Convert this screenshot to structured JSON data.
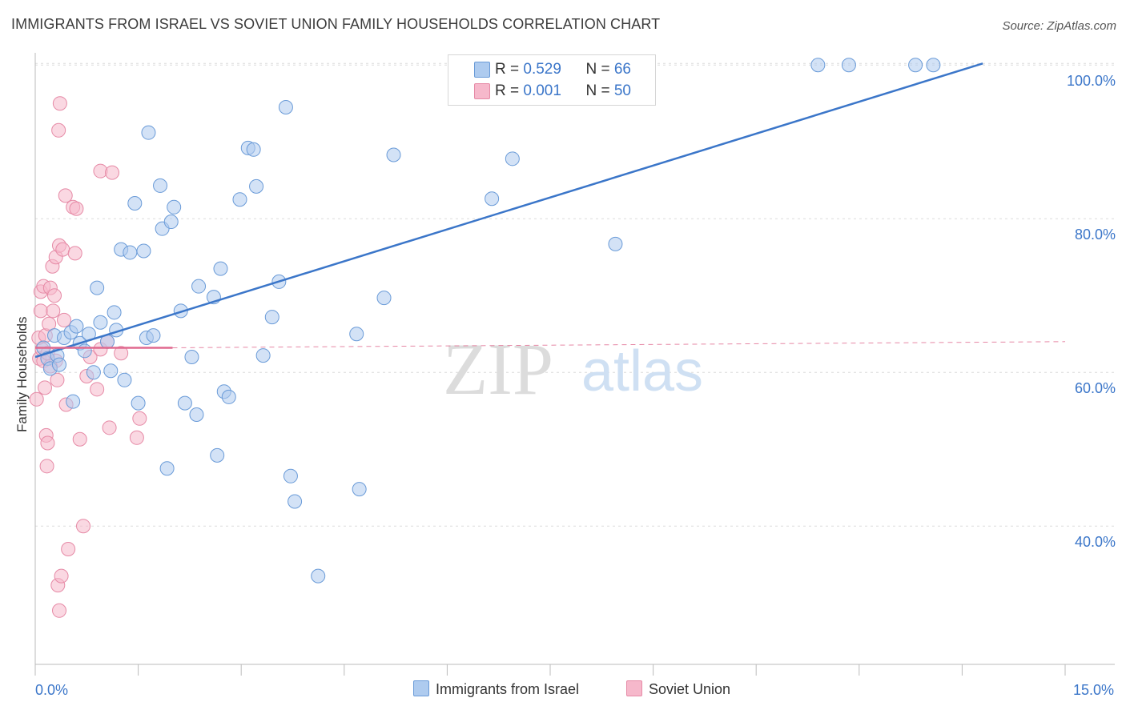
{
  "title": "IMMIGRANTS FROM ISRAEL VS SOVIET UNION FAMILY HOUSEHOLDS CORRELATION CHART",
  "source": "Source: ZipAtlas.com",
  "watermark": {
    "zip": "ZIP",
    "atlas": "atlas"
  },
  "legend": {
    "rows": [
      {
        "r_label": "R = ",
        "r_value": "0.529",
        "n_label": "N = ",
        "n_value": "66",
        "color": "#aecbef"
      },
      {
        "r_label": "R = ",
        "r_value": "0.001",
        "n_label": "N = ",
        "n_value": "50",
        "color": "#f6b8cb"
      }
    ]
  },
  "bottom_legend": {
    "israel": "Immigrants from Israel",
    "soviet": "Soviet Union"
  },
  "axes": {
    "ylabel": "Family Households",
    "x_min_label": "0.0%",
    "x_max_label": "15.0%"
  },
  "chart_data": {
    "type": "scatter",
    "title": "IMMIGRANTS FROM ISRAEL VS SOVIET UNION FAMILY HOUSEHOLDS CORRELATION CHART",
    "xlabel": "",
    "ylabel": "Family Households",
    "xlim": [
      0,
      15
    ],
    "ylim": [
      22,
      102
    ],
    "y_ticks": [
      {
        "value": 40,
        "label": "40.0%"
      },
      {
        "value": 60,
        "label": "60.0%"
      },
      {
        "value": 80,
        "label": "80.0%"
      },
      {
        "value": 100,
        "label": "100.0%"
      }
    ],
    "grid": true,
    "series": [
      {
        "name": "Immigrants from Israel",
        "color": "#aecbef",
        "stroke": "#6a9bd8",
        "trend": {
          "x": [
            0.0,
            13.8
          ],
          "y": [
            62.0,
            100.2
          ],
          "color": "#3b76c9",
          "dashed": false
        },
        "points": [
          [
            0.12,
            63.2
          ],
          [
            0.18,
            61.8
          ],
          [
            0.22,
            60.5
          ],
          [
            0.28,
            64.8
          ],
          [
            0.32,
            62.2
          ],
          [
            0.35,
            61.0
          ],
          [
            0.42,
            64.5
          ],
          [
            0.52,
            65.2
          ],
          [
            0.55,
            56.2
          ],
          [
            0.6,
            66.0
          ],
          [
            0.65,
            63.8
          ],
          [
            0.72,
            62.8
          ],
          [
            0.78,
            65.0
          ],
          [
            0.85,
            60.0
          ],
          [
            0.9,
            71.0
          ],
          [
            0.95,
            66.5
          ],
          [
            1.05,
            64.0
          ],
          [
            1.1,
            60.2
          ],
          [
            1.15,
            67.8
          ],
          [
            1.18,
            65.5
          ],
          [
            1.25,
            76.0
          ],
          [
            1.3,
            59.0
          ],
          [
            1.38,
            75.6
          ],
          [
            1.45,
            82.0
          ],
          [
            1.5,
            56.0
          ],
          [
            1.58,
            75.8
          ],
          [
            1.62,
            64.5
          ],
          [
            1.65,
            91.2
          ],
          [
            1.72,
            64.8
          ],
          [
            1.82,
            84.3
          ],
          [
            1.85,
            78.7
          ],
          [
            1.92,
            47.5
          ],
          [
            1.98,
            79.6
          ],
          [
            2.02,
            81.5
          ],
          [
            2.12,
            68.0
          ],
          [
            2.18,
            56.0
          ],
          [
            2.28,
            62.0
          ],
          [
            2.35,
            54.5
          ],
          [
            2.38,
            71.2
          ],
          [
            2.6,
            69.8
          ],
          [
            2.65,
            49.2
          ],
          [
            2.7,
            73.5
          ],
          [
            2.75,
            57.5
          ],
          [
            2.82,
            56.8
          ],
          [
            2.98,
            82.5
          ],
          [
            3.1,
            89.2
          ],
          [
            3.18,
            89.0
          ],
          [
            3.22,
            84.2
          ],
          [
            3.32,
            62.2
          ],
          [
            3.45,
            67.2
          ],
          [
            3.55,
            71.8
          ],
          [
            3.65,
            94.5
          ],
          [
            3.72,
            46.5
          ],
          [
            3.78,
            43.2
          ],
          [
            4.12,
            33.5
          ],
          [
            4.68,
            65.0
          ],
          [
            4.72,
            44.8
          ],
          [
            5.08,
            69.7
          ],
          [
            5.22,
            88.3
          ],
          [
            6.65,
            82.6
          ],
          [
            6.95,
            87.8
          ],
          [
            8.45,
            76.7
          ],
          [
            11.4,
            100.0
          ],
          [
            11.85,
            100.0
          ],
          [
            12.82,
            100.0
          ],
          [
            13.08,
            100.0
          ]
        ]
      },
      {
        "name": "Soviet Union",
        "color": "#f6b8cb",
        "stroke": "#e68aa6",
        "trend": {
          "x": [
            0.0,
            2.0
          ],
          "y": [
            63.2,
            63.2
          ],
          "dash_to": 15.0,
          "dash_y": 64.0,
          "color": "#e0698f"
        },
        "points": [
          [
            0.02,
            56.5
          ],
          [
            0.05,
            64.5
          ],
          [
            0.06,
            61.8
          ],
          [
            0.08,
            68.0
          ],
          [
            0.08,
            70.5
          ],
          [
            0.1,
            63.0
          ],
          [
            0.12,
            71.2
          ],
          [
            0.12,
            61.5
          ],
          [
            0.14,
            58.0
          ],
          [
            0.15,
            64.8
          ],
          [
            0.16,
            51.8
          ],
          [
            0.17,
            47.8
          ],
          [
            0.18,
            50.8
          ],
          [
            0.2,
            66.3
          ],
          [
            0.22,
            71.0
          ],
          [
            0.25,
            73.8
          ],
          [
            0.26,
            68.0
          ],
          [
            0.28,
            70.0
          ],
          [
            0.3,
            75.0
          ],
          [
            0.3,
            61.5
          ],
          [
            0.32,
            59.0
          ],
          [
            0.33,
            32.3
          ],
          [
            0.34,
            91.5
          ],
          [
            0.35,
            29.0
          ],
          [
            0.35,
            76.5
          ],
          [
            0.36,
            95.0
          ],
          [
            0.38,
            33.5
          ],
          [
            0.4,
            76.0
          ],
          [
            0.42,
            66.8
          ],
          [
            0.44,
            83.0
          ],
          [
            0.45,
            55.8
          ],
          [
            0.48,
            37.0
          ],
          [
            0.55,
            81.5
          ],
          [
            0.58,
            75.5
          ],
          [
            0.6,
            81.3
          ],
          [
            0.65,
            51.3
          ],
          [
            0.7,
            40.0
          ],
          [
            0.75,
            59.5
          ],
          [
            0.8,
            62.0
          ],
          [
            0.9,
            57.8
          ],
          [
            0.95,
            63.0
          ],
          [
            1.05,
            64.0
          ],
          [
            1.25,
            62.5
          ],
          [
            0.95,
            86.2
          ],
          [
            1.12,
            86.0
          ],
          [
            1.08,
            52.8
          ],
          [
            1.48,
            51.5
          ],
          [
            1.52,
            54.0
          ],
          [
            0.18,
            62.5
          ],
          [
            0.22,
            60.8
          ]
        ]
      }
    ]
  }
}
